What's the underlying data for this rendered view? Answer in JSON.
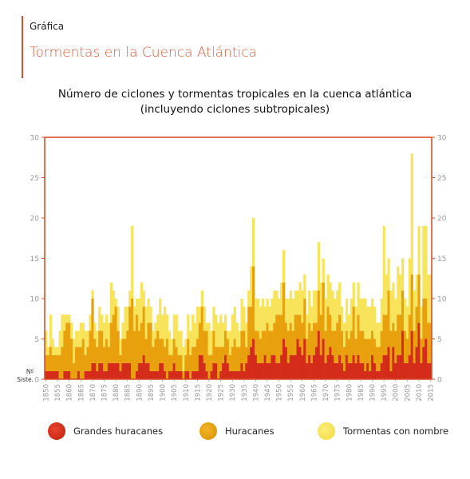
{
  "header": {
    "section_label": "Gráfica",
    "section_title": "Tormentas en la Cuenca Atlántica"
  },
  "colors": {
    "accent": "#d9502b",
    "major": "#d42b1a",
    "hurricanes": "#e8a00c",
    "storms": "#f7e45a",
    "tick": "#999999"
  },
  "chart_data": {
    "type": "bar",
    "stacked": true,
    "title": "Número de ciclones y tormentas tropicales en la cuenca atlántica",
    "subtitle": "(incluyendo ciclones subtropicales)",
    "y_label_top": "Nº",
    "y_label_bottom": "Siste.",
    "ylim": [
      0,
      30
    ],
    "y_ticks": [
      0,
      5,
      10,
      15,
      20,
      25,
      30
    ],
    "x_tick_labels": [
      "1850",
      "1855",
      "1860",
      "1865",
      "1870",
      "1875",
      "1880",
      "1885",
      "1890",
      "1895",
      "1900",
      "1905",
      "1910",
      "1915",
      "1920",
      "1925",
      "1930",
      "1935",
      "1940",
      "1945",
      "1950",
      "1955",
      "1960",
      "1965",
      "1970",
      "1975",
      "1980",
      "1985",
      "1990",
      "1995",
      "2000",
      "2005",
      "2010",
      "2015"
    ],
    "x_start": 1850,
    "x_end": 2015,
    "series": [
      {
        "name": "Grandes huracanes",
        "values": [
          1,
          1,
          1,
          1,
          1,
          1,
          0,
          0,
          1,
          1,
          1,
          0,
          0,
          0,
          1,
          0,
          0,
          1,
          1,
          1,
          2,
          2,
          1,
          2,
          2,
          1,
          1,
          2,
          2,
          2,
          2,
          2,
          1,
          2,
          2,
          2,
          2,
          0,
          0,
          1,
          2,
          2,
          3,
          2,
          2,
          1,
          1,
          1,
          1,
          2,
          2,
          1,
          0,
          1,
          1,
          2,
          1,
          1,
          1,
          0,
          1,
          1,
          0,
          1,
          1,
          1,
          3,
          3,
          2,
          1,
          0,
          1,
          2,
          2,
          0,
          1,
          2,
          3,
          2,
          1,
          1,
          1,
          1,
          1,
          2,
          1,
          2,
          3,
          4,
          5,
          3,
          2,
          2,
          2,
          3,
          2,
          2,
          3,
          3,
          2,
          2,
          3,
          5,
          4,
          2,
          3,
          3,
          3,
          5,
          4,
          3,
          5,
          2,
          3,
          2,
          3,
          4,
          6,
          3,
          5,
          2,
          3,
          4,
          3,
          2,
          2,
          3,
          2,
          1,
          3,
          2,
          2,
          3,
          2,
          3,
          2,
          2,
          1,
          2,
          1,
          3,
          2,
          1,
          1,
          2,
          3,
          3,
          4,
          1,
          4,
          2,
          3,
          3,
          6,
          2,
          2,
          3,
          6,
          2,
          4,
          7,
          2,
          4,
          5,
          2,
          2
        ]
      },
      {
        "name": "Huracanes",
        "values": [
          2,
          2,
          3,
          2,
          2,
          2,
          3,
          4,
          5,
          6,
          6,
          5,
          2,
          4,
          3,
          4,
          5,
          2,
          3,
          5,
          8,
          3,
          3,
          4,
          4,
          3,
          4,
          2,
          5,
          6,
          7,
          4,
          2,
          3,
          3,
          4,
          7,
          10,
          6,
          7,
          4,
          5,
          6,
          3,
          5,
          6,
          3,
          4,
          5,
          3,
          3,
          3,
          5,
          2,
          2,
          3,
          3,
          2,
          2,
          1,
          2,
          4,
          3,
          3,
          3,
          4,
          4,
          6,
          4,
          5,
          3,
          2,
          4,
          2,
          4,
          3,
          2,
          3,
          3,
          2,
          3,
          4,
          3,
          3,
          4,
          5,
          2,
          6,
          5,
          9,
          3,
          4,
          3,
          4,
          3,
          5,
          4,
          3,
          4,
          6,
          6,
          5,
          7,
          3,
          4,
          4,
          3,
          5,
          3,
          4,
          4,
          5,
          3,
          4,
          4,
          4,
          3,
          5,
          5,
          7,
          4,
          6,
          4,
          3,
          4,
          5,
          5,
          4,
          3,
          3,
          3,
          4,
          6,
          3,
          5,
          4,
          4,
          4,
          3,
          4,
          3,
          3,
          3,
          3,
          4,
          5,
          5,
          7,
          5,
          3,
          4,
          5,
          5,
          5,
          4,
          3,
          5,
          7,
          4,
          5,
          6,
          3,
          6,
          5,
          5,
          5
        ]
      },
      {
        "name": "Tormentas con nombre",
        "values": [
          3,
          1,
          4,
          2,
          1,
          1,
          3,
          4,
          2,
          1,
          1,
          2,
          3,
          2,
          2,
          3,
          2,
          3,
          2,
          2,
          1,
          2,
          2,
          3,
          2,
          3,
          3,
          3,
          5,
          3,
          1,
          3,
          2,
          2,
          4,
          3,
          2,
          9,
          3,
          2,
          4,
          5,
          2,
          4,
          3,
          2,
          2,
          2,
          2,
          5,
          3,
          5,
          3,
          3,
          2,
          3,
          4,
          3,
          3,
          3,
          2,
          3,
          3,
          4,
          3,
          4,
          2,
          2,
          3,
          1,
          4,
          3,
          3,
          4,
          3,
          4,
          3,
          2,
          1,
          3,
          4,
          4,
          3,
          2,
          4,
          3,
          3,
          2,
          5,
          6,
          4,
          4,
          4,
          4,
          3,
          3,
          3,
          4,
          4,
          3,
          2,
          4,
          4,
          3,
          4,
          4,
          4,
          3,
          3,
          4,
          4,
          3,
          3,
          4,
          3,
          4,
          4,
          6,
          4,
          3,
          4,
          4,
          4,
          5,
          4,
          4,
          4,
          3,
          3,
          4,
          3,
          4,
          3,
          4,
          4,
          4,
          4,
          5,
          4,
          4,
          4,
          4,
          3,
          3,
          4,
          11,
          5,
          4,
          5,
          5,
          4,
          6,
          5,
          4,
          4,
          4,
          7,
          15,
          5,
          4,
          6,
          4,
          9,
          9,
          6,
          6
        ]
      }
    ],
    "legend_position": "bottom"
  }
}
